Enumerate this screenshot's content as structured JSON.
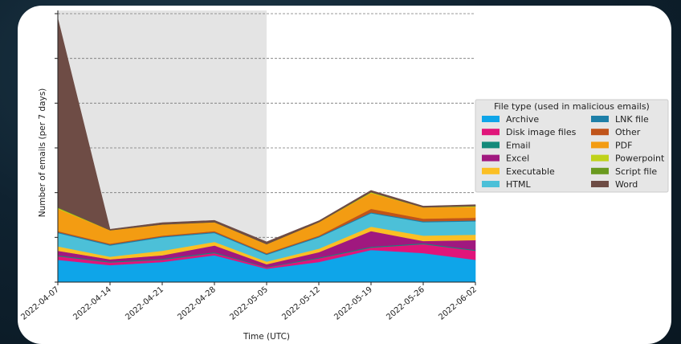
{
  "chart_data": {
    "type": "area",
    "stacked": true,
    "xlabel": "Time (UTC)",
    "ylabel": "Number of emails (per 7 days)",
    "x": [
      "2022-04-07",
      "2022-04-14",
      "2022-04-21",
      "2022-04-28",
      "2022-05-05",
      "2022-05-12",
      "2022-05-19",
      "2022-05-26",
      "2022-06-02"
    ],
    "ylim": [
      0,
      6
    ],
    "grid": "horizontal dashed",
    "shaded_region": {
      "from": "2022-04-07",
      "to": "2022-05-05"
    },
    "legend": {
      "title": "File type (used in malicious emails)",
      "placement": "center-right",
      "columns": 2
    },
    "series": [
      {
        "name": "Archive",
        "color": "#0ea5e9",
        "values": [
          0.5,
          0.38,
          0.45,
          0.6,
          0.3,
          0.45,
          0.72,
          0.65,
          0.5
        ]
      },
      {
        "name": "Disk image files",
        "color": "#e0157a",
        "values": [
          0.08,
          0.06,
          0.05,
          0.05,
          0.03,
          0.08,
          0.05,
          0.2,
          0.2
        ]
      },
      {
        "name": "Email",
        "color": "#138a7a",
        "values": [
          0.02,
          0.02,
          0.02,
          0.02,
          0.01,
          0.02,
          0.02,
          0.02,
          0.02
        ]
      },
      {
        "name": "Excel",
        "color": "#a0187f",
        "values": [
          0.1,
          0.05,
          0.08,
          0.15,
          0.06,
          0.12,
          0.35,
          0.05,
          0.22
        ]
      },
      {
        "name": "Executable",
        "color": "#fbbf24",
        "values": [
          0.1,
          0.06,
          0.1,
          0.08,
          0.06,
          0.08,
          0.1,
          0.12,
          0.12
        ]
      },
      {
        "name": "HTML",
        "color": "#4cc0d8",
        "values": [
          0.3,
          0.25,
          0.3,
          0.2,
          0.15,
          0.25,
          0.3,
          0.3,
          0.3
        ]
      },
      {
        "name": "LNK file",
        "color": "#1d7fa8",
        "values": [
          0.02,
          0.02,
          0.02,
          0.02,
          0.02,
          0.02,
          0.02,
          0.02,
          0.02
        ]
      },
      {
        "name": "Other",
        "color": "#c0541a",
        "values": [
          0.02,
          0.02,
          0.02,
          0.02,
          0.02,
          0.02,
          0.08,
          0.06,
          0.06
        ]
      },
      {
        "name": "PDF",
        "color": "#f39c12",
        "values": [
          0.5,
          0.3,
          0.25,
          0.2,
          0.2,
          0.3,
          0.35,
          0.25,
          0.24
        ]
      },
      {
        "name": "Powerpoint",
        "color": "#bfd21a",
        "values": [
          0.02,
          0.0,
          0.0,
          0.0,
          0.0,
          0.0,
          0.02,
          0.0,
          0.02
        ]
      },
      {
        "name": "Script file",
        "color": "#6a9a1f",
        "values": [
          0.01,
          0.0,
          0.0,
          0.0,
          0.0,
          0.0,
          0.0,
          0.0,
          0.0
        ]
      },
      {
        "name": "Word",
        "color": "#6e4c45",
        "values": [
          4.22,
          0.02,
          0.04,
          0.04,
          0.05,
          0.03,
          0.04,
          0.03,
          0.03
        ]
      }
    ]
  }
}
